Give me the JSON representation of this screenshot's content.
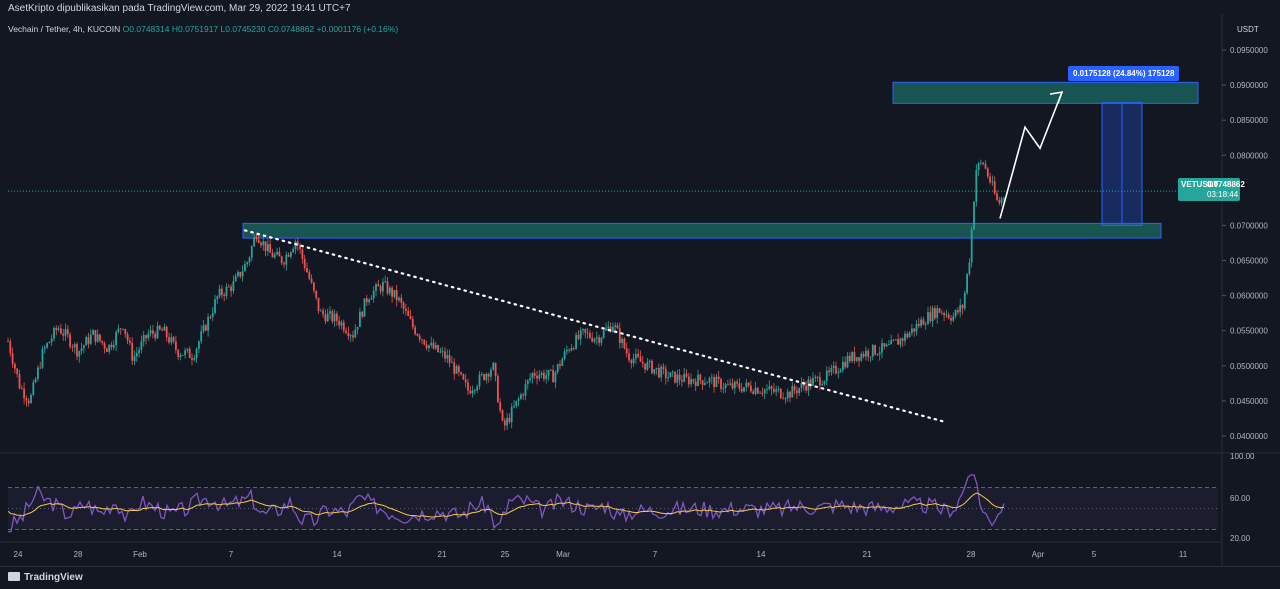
{
  "header": {
    "published_by": "AsetKripto dipublikasikan pada TradingView.com, Mar 29, 2022 19:41 UTC+7"
  },
  "symbol_line": {
    "name": "Vechain / Tether, 4h, KUCOIN",
    "open": "O0.0748314",
    "high": "H0.0751917",
    "low": "L0.0745230",
    "close": "C0.0748862",
    "change": "+0.0001176 (+0.16%)"
  },
  "price_axis": {
    "currency": "USDT",
    "ticks": [
      "0.0950000",
      "0.0900000",
      "0.0850000",
      "0.0800000",
      "0.0700000",
      "0.0650000",
      "0.0600000",
      "0.0550000",
      "0.0500000",
      "0.0450000",
      "0.0400000"
    ]
  },
  "last_price_badge": {
    "symbol": "VETUSDT",
    "price": "0.0748862",
    "timer": "03:18:44"
  },
  "measure_label": "0.0175128 (24.84%) 175128",
  "rsi_axis": {
    "ticks": [
      "100.00",
      "60.00",
      "20.00"
    ]
  },
  "time_axis": {
    "labels": [
      "24",
      "28",
      "Feb",
      "7",
      "14",
      "21",
      "25",
      "Mar",
      "7",
      "14",
      "21",
      "28",
      "Apr",
      "5",
      "11"
    ]
  },
  "footer": {
    "brand": "TradingView"
  },
  "colors": {
    "background": "#131722",
    "up": "#26a69a",
    "down": "#ef5350",
    "zone_fill": "#1b6b63",
    "zone_border": "#2962ff",
    "rsi_line": "#7e57c2",
    "rsi_ma": "#f7c948"
  },
  "chart_data": {
    "type": "candlestick",
    "y_range": [
      0.038,
      0.097
    ],
    "rsi_range": [
      20,
      100
    ],
    "price_path": [
      [
        0,
        0.0535
      ],
      [
        12,
        0.047
      ],
      [
        22,
        0.045
      ],
      [
        35,
        0.052
      ],
      [
        50,
        0.0555
      ],
      [
        60,
        0.054
      ],
      [
        70,
        0.052
      ],
      [
        85,
        0.0545
      ],
      [
        100,
        0.0525
      ],
      [
        115,
        0.056
      ],
      [
        125,
        0.051
      ],
      [
        140,
        0.0545
      ],
      [
        155,
        0.055
      ],
      [
        170,
        0.052
      ],
      [
        185,
        0.0515
      ],
      [
        200,
        0.0565
      ],
      [
        210,
        0.06
      ],
      [
        225,
        0.0615
      ],
      [
        240,
        0.065
      ],
      [
        248,
        0.069
      ],
      [
        262,
        0.066
      ],
      [
        275,
        0.065
      ],
      [
        288,
        0.068
      ],
      [
        300,
        0.063
      ],
      [
        312,
        0.0575
      ],
      [
        330,
        0.0565
      ],
      [
        345,
        0.0545
      ],
      [
        360,
        0.06
      ],
      [
        375,
        0.0615
      ],
      [
        390,
        0.0595
      ],
      [
        405,
        0.0555
      ],
      [
        420,
        0.053
      ],
      [
        440,
        0.051
      ],
      [
        460,
        0.0465
      ],
      [
        475,
        0.0485
      ],
      [
        485,
        0.05
      ],
      [
        495,
        0.041
      ],
      [
        510,
        0.045
      ],
      [
        525,
        0.049
      ],
      [
        545,
        0.0485
      ],
      [
        560,
        0.0525
      ],
      [
        575,
        0.0545
      ],
      [
        590,
        0.054
      ],
      [
        605,
        0.056
      ],
      [
        620,
        0.0515
      ],
      [
        640,
        0.05
      ],
      [
        660,
        0.0485
      ],
      [
        680,
        0.048
      ],
      [
        700,
        0.048
      ],
      [
        720,
        0.047
      ],
      [
        740,
        0.047
      ],
      [
        760,
        0.0465
      ],
      [
        780,
        0.046
      ],
      [
        800,
        0.0475
      ],
      [
        820,
        0.0485
      ],
      [
        840,
        0.051
      ],
      [
        860,
        0.052
      ],
      [
        880,
        0.0525
      ],
      [
        900,
        0.0545
      ],
      [
        915,
        0.0565
      ],
      [
        930,
        0.058
      ],
      [
        945,
        0.057
      ],
      [
        955,
        0.0585
      ],
      [
        962,
        0.066
      ],
      [
        968,
        0.078
      ],
      [
        975,
        0.079
      ],
      [
        983,
        0.076
      ],
      [
        990,
        0.073
      ],
      [
        998,
        0.0748
      ]
    ],
    "support_zone": [
      0.0682,
      0.0703
    ],
    "target_zone": [
      0.0874,
      0.0904
    ],
    "trendline": {
      "from": [
        245,
        0.0693
      ],
      "to": [
        945,
        0.042
      ]
    },
    "projection_path": [
      [
        1000,
        0.071
      ],
      [
        1025,
        0.084
      ],
      [
        1040,
        0.081
      ],
      [
        1062,
        0.089
      ]
    ],
    "measure_range": [
      0.07,
      0.0875
    ],
    "last_price": 0.0748862,
    "rsi_levels": [
      70,
      50,
      30
    ]
  }
}
